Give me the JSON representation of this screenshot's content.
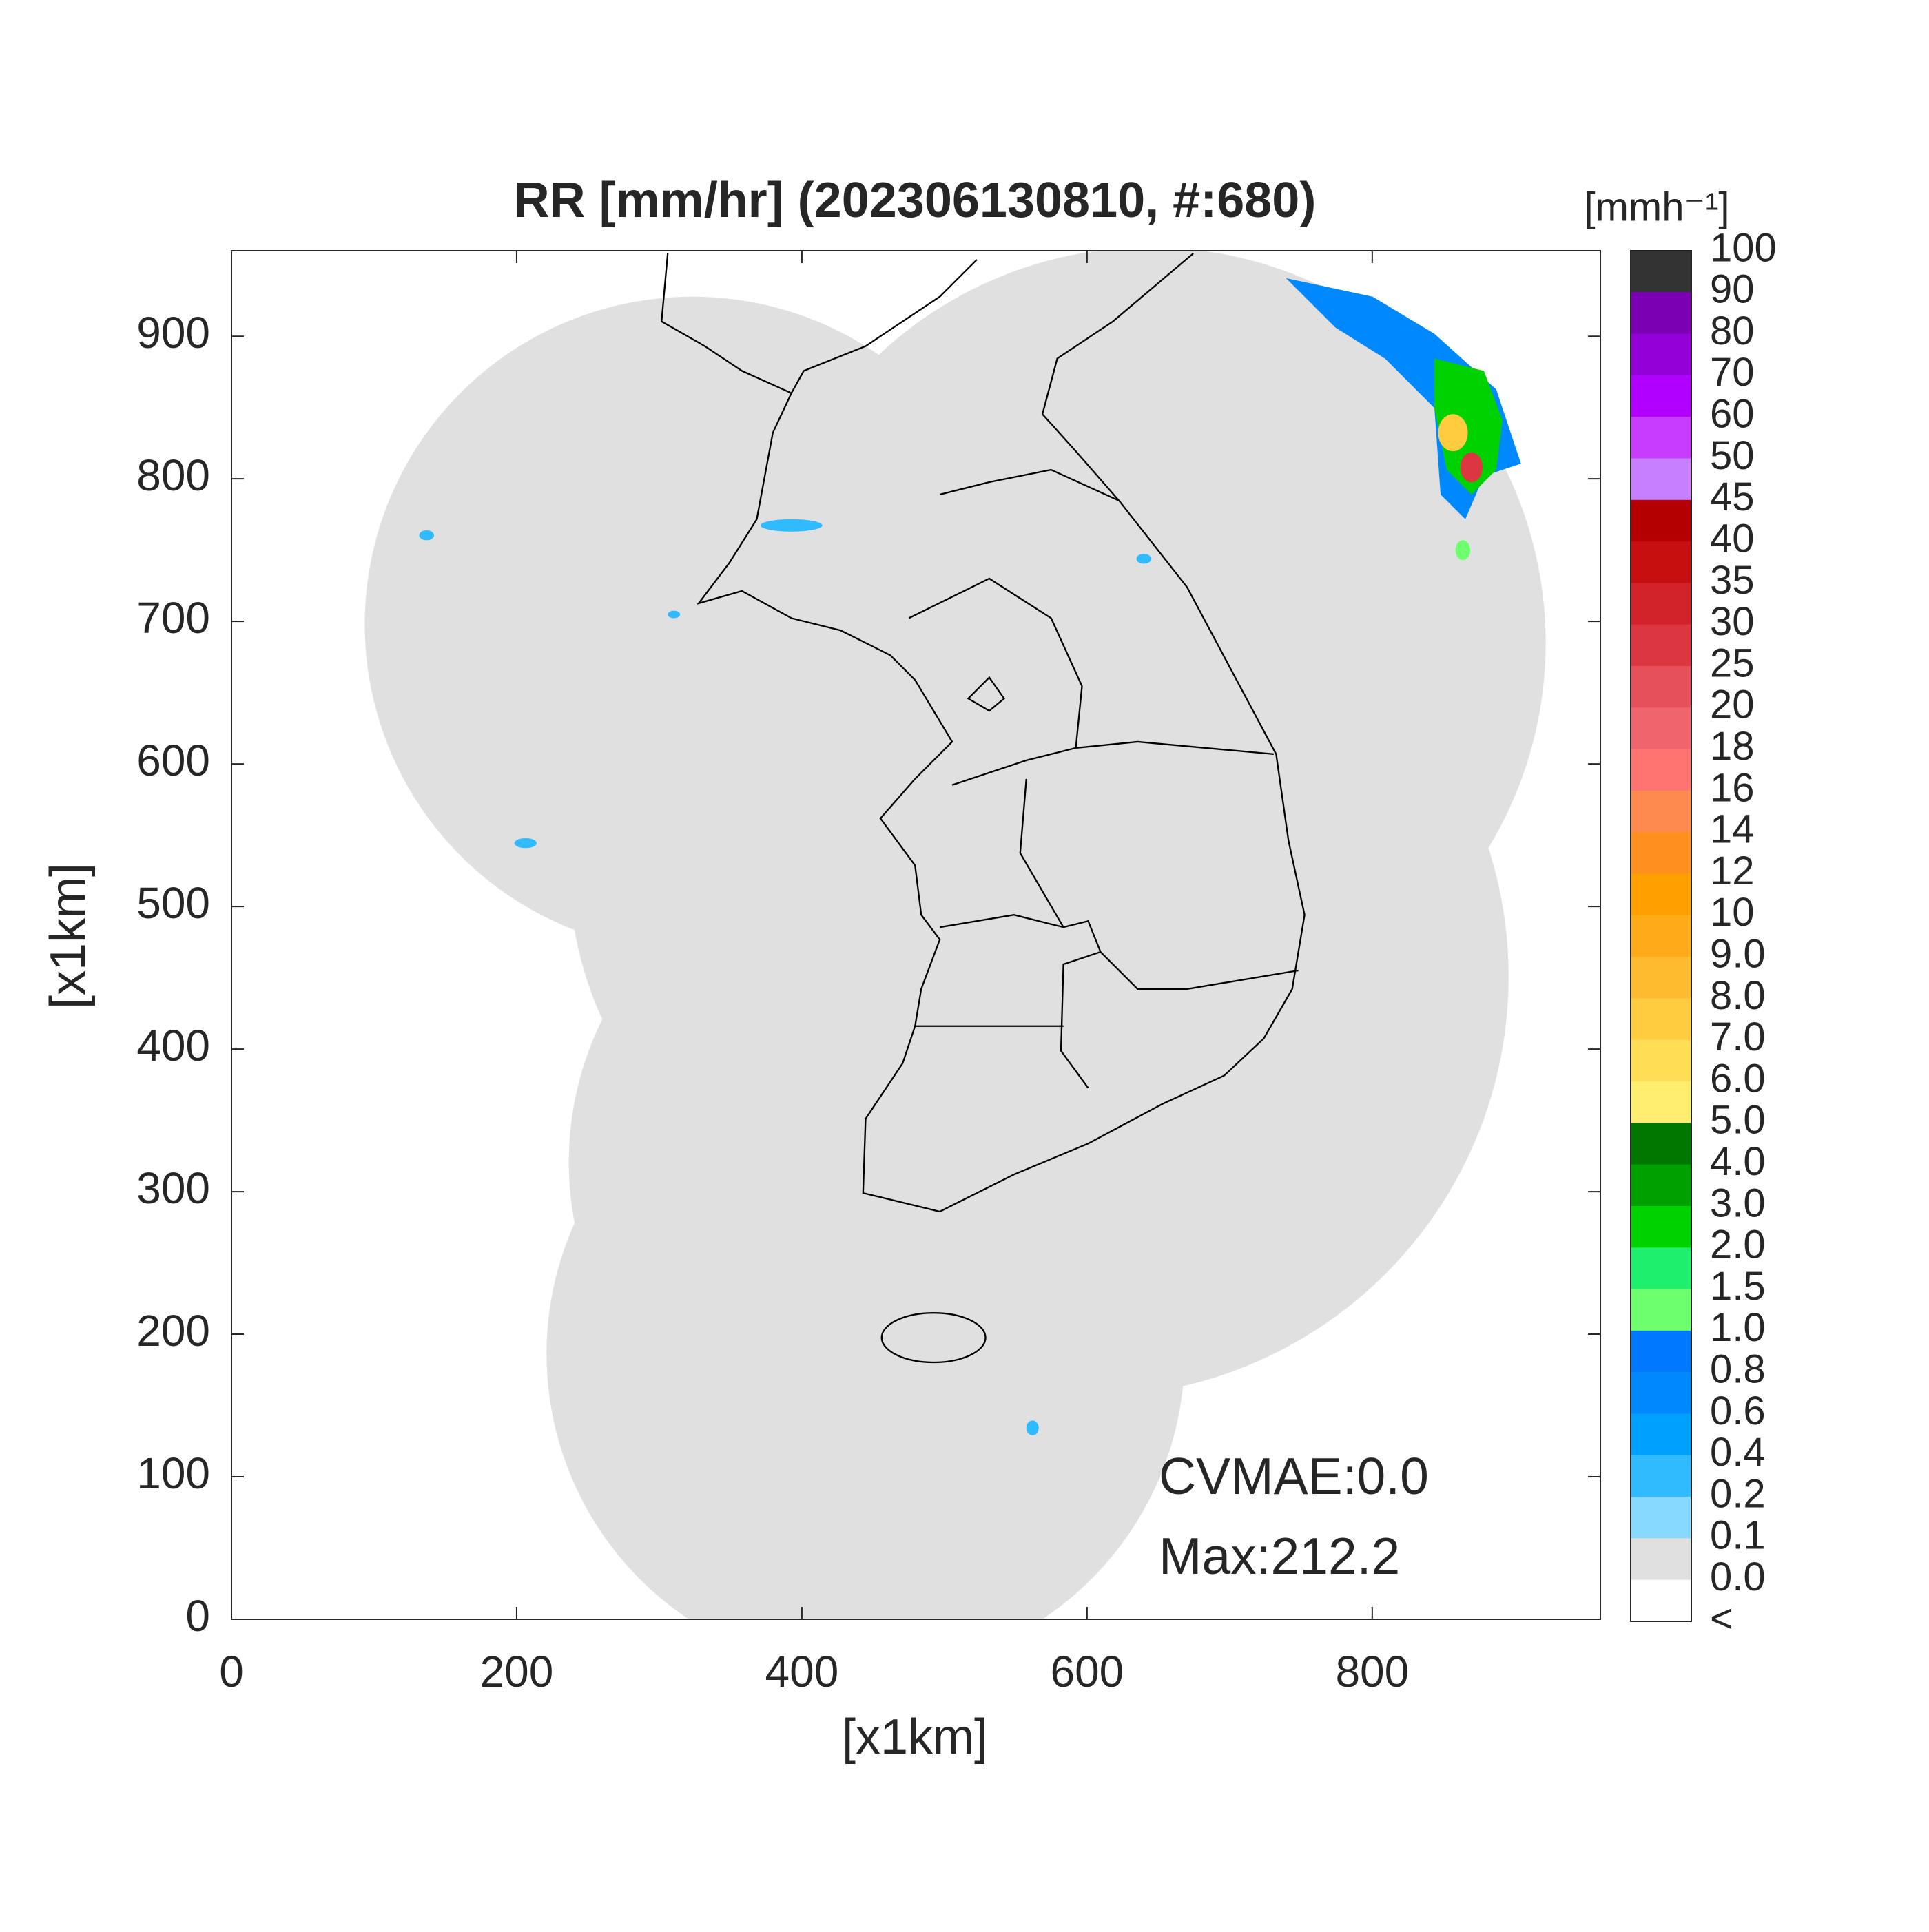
{
  "chart_data": {
    "type": "map",
    "title": "RR [mm/hr] (202306130810, #:680)",
    "x_label": "[x1km]",
    "y_label": "[x1km]",
    "xlim": [
      0,
      960
    ],
    "ylim": [
      0,
      960
    ],
    "xticks": [
      0,
      200,
      400,
      600,
      800
    ],
    "yticks": [
      0,
      100,
      200,
      300,
      400,
      500,
      600,
      700,
      800,
      900
    ],
    "colorbar": {
      "unit": "[mmh⁻¹]",
      "levels": [
        "100",
        "90",
        "80",
        "70",
        "60",
        "50",
        "45",
        "40",
        "35",
        "30",
        "25",
        "20",
        "18",
        "16",
        "14",
        "12",
        "10",
        "9.0",
        "8.0",
        "7.0",
        "6.0",
        "5.0",
        "4.0",
        "3.0",
        "2.0",
        "1.5",
        "1.0",
        "0.8",
        "0.6",
        "0.4",
        "0.2",
        "0.1",
        "0.0",
        "<"
      ],
      "colors": [
        "#333333",
        "#7b00b4",
        "#9300d8",
        "#b000ff",
        "#c83cff",
        "#c87fff",
        "#b40000",
        "#c80f0f",
        "#d2222a",
        "#dc3641",
        "#e6505a",
        "#f0646e",
        "#ff7470",
        "#ff8a50",
        "#ff9020",
        "#ffa000",
        "#ffaa18",
        "#ffbb30",
        "#ffcc40",
        "#ffdd55",
        "#ffee70",
        "#007800",
        "#00a000",
        "#00d200",
        "#1ef06e",
        "#6eff6e",
        "#0078ff",
        "#0088ff",
        "#00a0ff",
        "#30baff",
        "#87d9ff",
        "#e0e0e0",
        "#ffffff"
      ]
    },
    "annotations": [
      "CVMAE:0.0",
      "Max:212.2"
    ]
  }
}
